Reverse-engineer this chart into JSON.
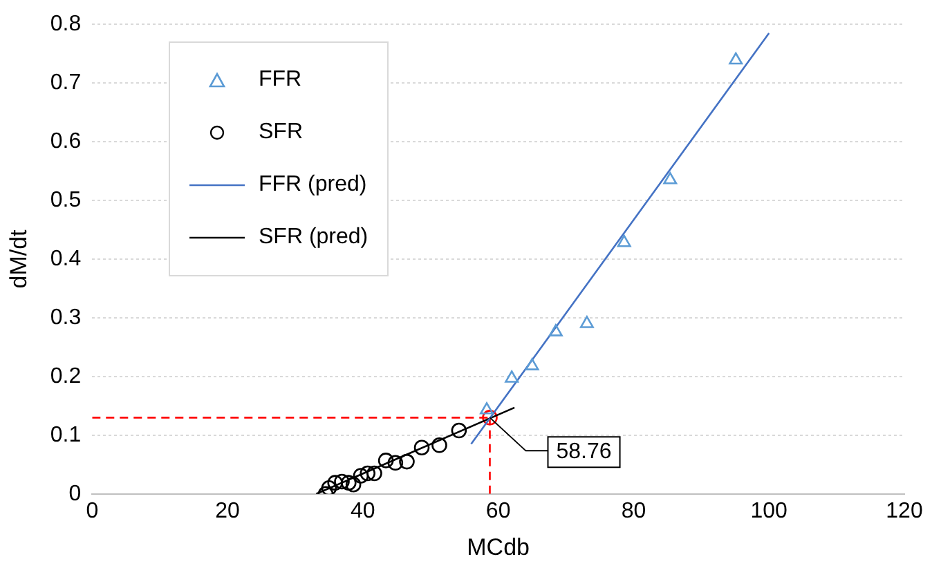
{
  "chart_data": {
    "type": "scatter",
    "xlabel": "MCdb",
    "ylabel": "dM/dt",
    "xlim": [
      0,
      120
    ],
    "xticks": [
      0,
      20,
      40,
      60,
      80,
      100,
      120
    ],
    "ylim": [
      0,
      0.8
    ],
    "yticks": [
      0,
      0.1,
      0.2,
      0.3,
      0.4,
      0.5,
      0.6,
      0.7,
      0.8
    ],
    "grid": "y",
    "legend": "top left",
    "series": [
      {
        "name": "FFR",
        "type": "scatter",
        "marker": "triangle",
        "color": "#5b9bd5",
        "x": [
          58.3,
          62.0,
          65.0,
          68.5,
          73.1,
          78.6,
          85.4,
          95.1
        ],
        "values": [
          0.143,
          0.197,
          0.218,
          0.276,
          0.29,
          0.428,
          0.535,
          0.739
        ]
      },
      {
        "name": "SFR",
        "type": "scatter",
        "marker": "circle",
        "color": "#000000",
        "x": [
          34.5,
          35.0,
          35.9,
          36.9,
          37.9,
          38.6,
          39.7,
          40.7,
          41.7,
          43.4,
          44.8,
          46.5,
          48.7,
          51.3,
          54.2
        ],
        "values": [
          0.0,
          0.01,
          0.019,
          0.021,
          0.019,
          0.016,
          0.031,
          0.035,
          0.035,
          0.057,
          0.053,
          0.055,
          0.079,
          0.083,
          0.108
        ]
      },
      {
        "name": "FFR (pred)",
        "type": "line",
        "marker": "none",
        "line_style": "solid",
        "color": "#4472c4",
        "x": [
          56,
          100
        ],
        "values": [
          0.085,
          0.785
        ]
      },
      {
        "name": "SFR (pred)",
        "type": "line",
        "marker": "none",
        "line_style": "solid",
        "color": "#000000",
        "x": [
          33.1,
          62.4
        ],
        "values": [
          0,
          0.147
        ]
      },
      {
        "type": "line",
        "marker": "none",
        "line_style": "dashed",
        "color": "#ff0000",
        "x": [
          0,
          58.76
        ],
        "values": [
          0.13,
          0.13
        ]
      },
      {
        "type": "line",
        "marker": "none",
        "line_style": "dashed",
        "color": "#ff0000",
        "x": [
          58.76,
          58.76
        ],
        "values": [
          0,
          0.13
        ]
      },
      {
        "type": "scatter",
        "marker": "circle",
        "color": "#ff0000",
        "x": [
          58.76
        ],
        "values": [
          0.13
        ]
      }
    ],
    "annotations": [
      {
        "text": "58.76",
        "x": 58.76,
        "y": 0.13
      }
    ]
  }
}
